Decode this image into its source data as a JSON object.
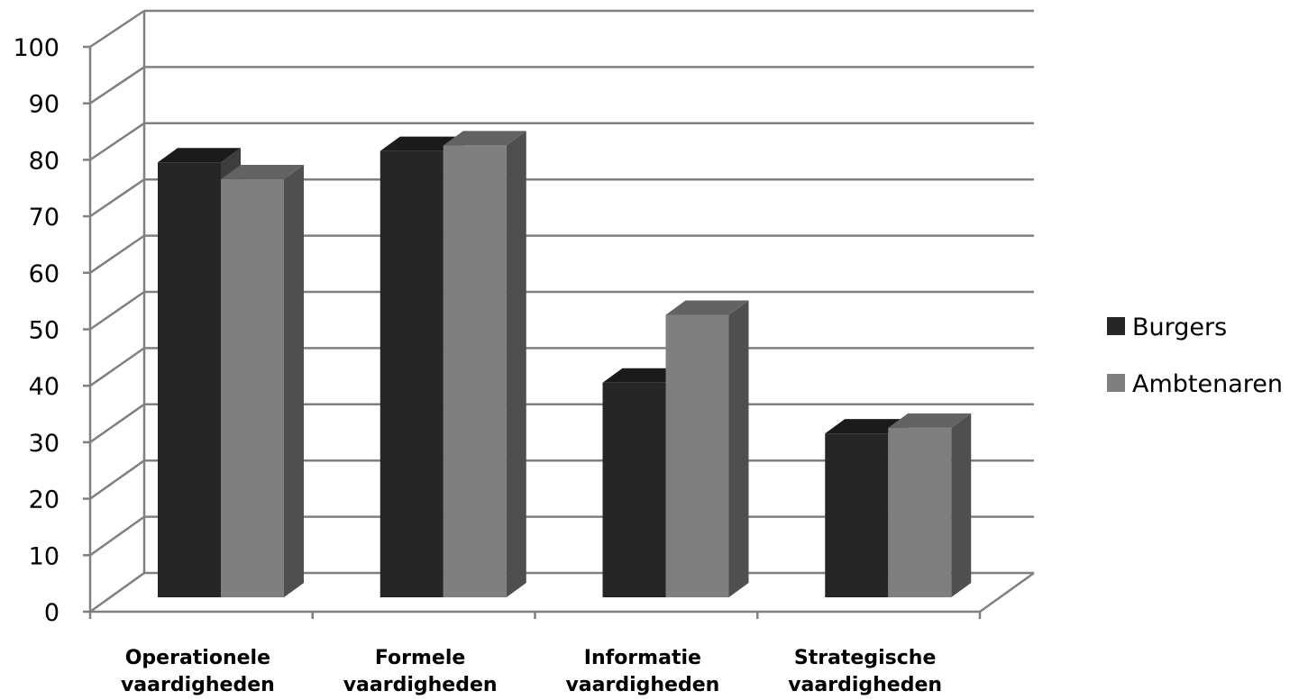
{
  "chart_data": {
    "type": "bar",
    "title": "",
    "xlabel": "",
    "ylabel": "",
    "ylim": [
      0,
      100
    ],
    "yticks": [
      "0",
      "10",
      "20",
      "30",
      "40",
      "50",
      "60",
      "70",
      "80",
      "90",
      "100"
    ],
    "categories": [
      [
        "Operationele",
        "vaardigheden"
      ],
      [
        "Formele",
        "vaardigheden"
      ],
      [
        "Informatie",
        "vaardigheden"
      ],
      [
        "Strategische",
        "vaardigheden"
      ]
    ],
    "series": [
      {
        "name": "Burgers",
        "values": [
          77,
          79,
          38,
          29
        ]
      },
      {
        "name": "Ambtenaren",
        "values": [
          74,
          80,
          50,
          30
        ]
      }
    ],
    "grid": true,
    "legend_position": "right",
    "style_3d": true
  },
  "colors": {
    "Burgers": "#262626",
    "Ambtenaren": "#7f7f7f",
    "gridline": "#808080"
  }
}
